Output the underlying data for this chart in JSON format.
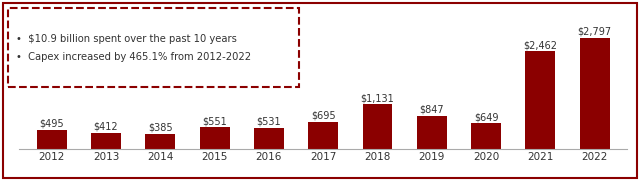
{
  "years": [
    "2012",
    "2013",
    "2014",
    "2015",
    "2016",
    "2017",
    "2018",
    "2019",
    "2020",
    "2021",
    "2022"
  ],
  "values": [
    495,
    412,
    385,
    551,
    531,
    695,
    1131,
    847,
    649,
    2462,
    2797
  ],
  "labels": [
    "$495",
    "$412",
    "$385",
    "$551",
    "$531",
    "$695",
    "$1,131",
    "$847",
    "$649",
    "$2,462",
    "$2,797"
  ],
  "bar_color": "#8B0000",
  "background_color": "#ffffff",
  "border_color": "#8B0000",
  "text_color": "#333333",
  "annotation_lines": [
    "•  $10.9 billion spent over the past 10 years",
    "•  Capex increased by 465.1% from 2012-2022"
  ],
  "ylim": [
    0,
    3200
  ],
  "label_fontsize": 7.0,
  "tick_fontsize": 7.5,
  "fig_border_color": "#8B0000",
  "fig_border_linewidth": 1.5
}
